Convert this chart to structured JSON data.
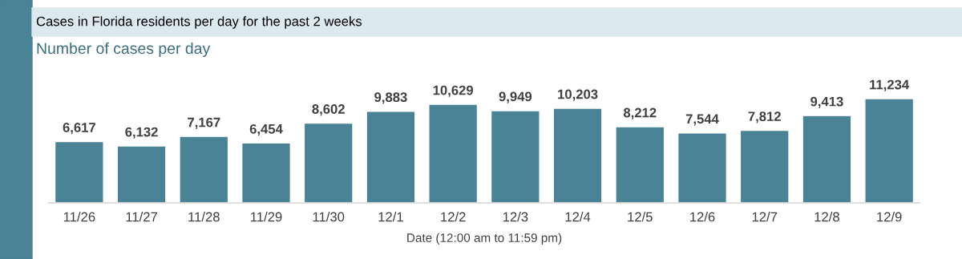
{
  "chart_data": {
    "type": "bar",
    "title": "Cases in Florida residents per day for the past 2 weeks",
    "subtitle": "Number of cases per day",
    "xlabel": "Date (12:00 am to 11:59 pm)",
    "categories": [
      "11/26",
      "11/27",
      "11/28",
      "11/29",
      "11/30",
      "12/1",
      "12/2",
      "12/3",
      "12/4",
      "12/5",
      "12/6",
      "12/7",
      "12/8",
      "12/9"
    ],
    "values": [
      6617,
      6132,
      7167,
      6454,
      8602,
      9883,
      10629,
      9949,
      10203,
      8212,
      7544,
      7812,
      9413,
      11234
    ],
    "value_labels": [
      "6,617",
      "6,132",
      "7,167",
      "6,454",
      "8,602",
      "9,883",
      "10,629",
      "9,949",
      "10,203",
      "8,212",
      "7,544",
      "7,812",
      "9,413",
      "11,234"
    ],
    "color": "#4a8296",
    "grid": false,
    "legend": false
  }
}
